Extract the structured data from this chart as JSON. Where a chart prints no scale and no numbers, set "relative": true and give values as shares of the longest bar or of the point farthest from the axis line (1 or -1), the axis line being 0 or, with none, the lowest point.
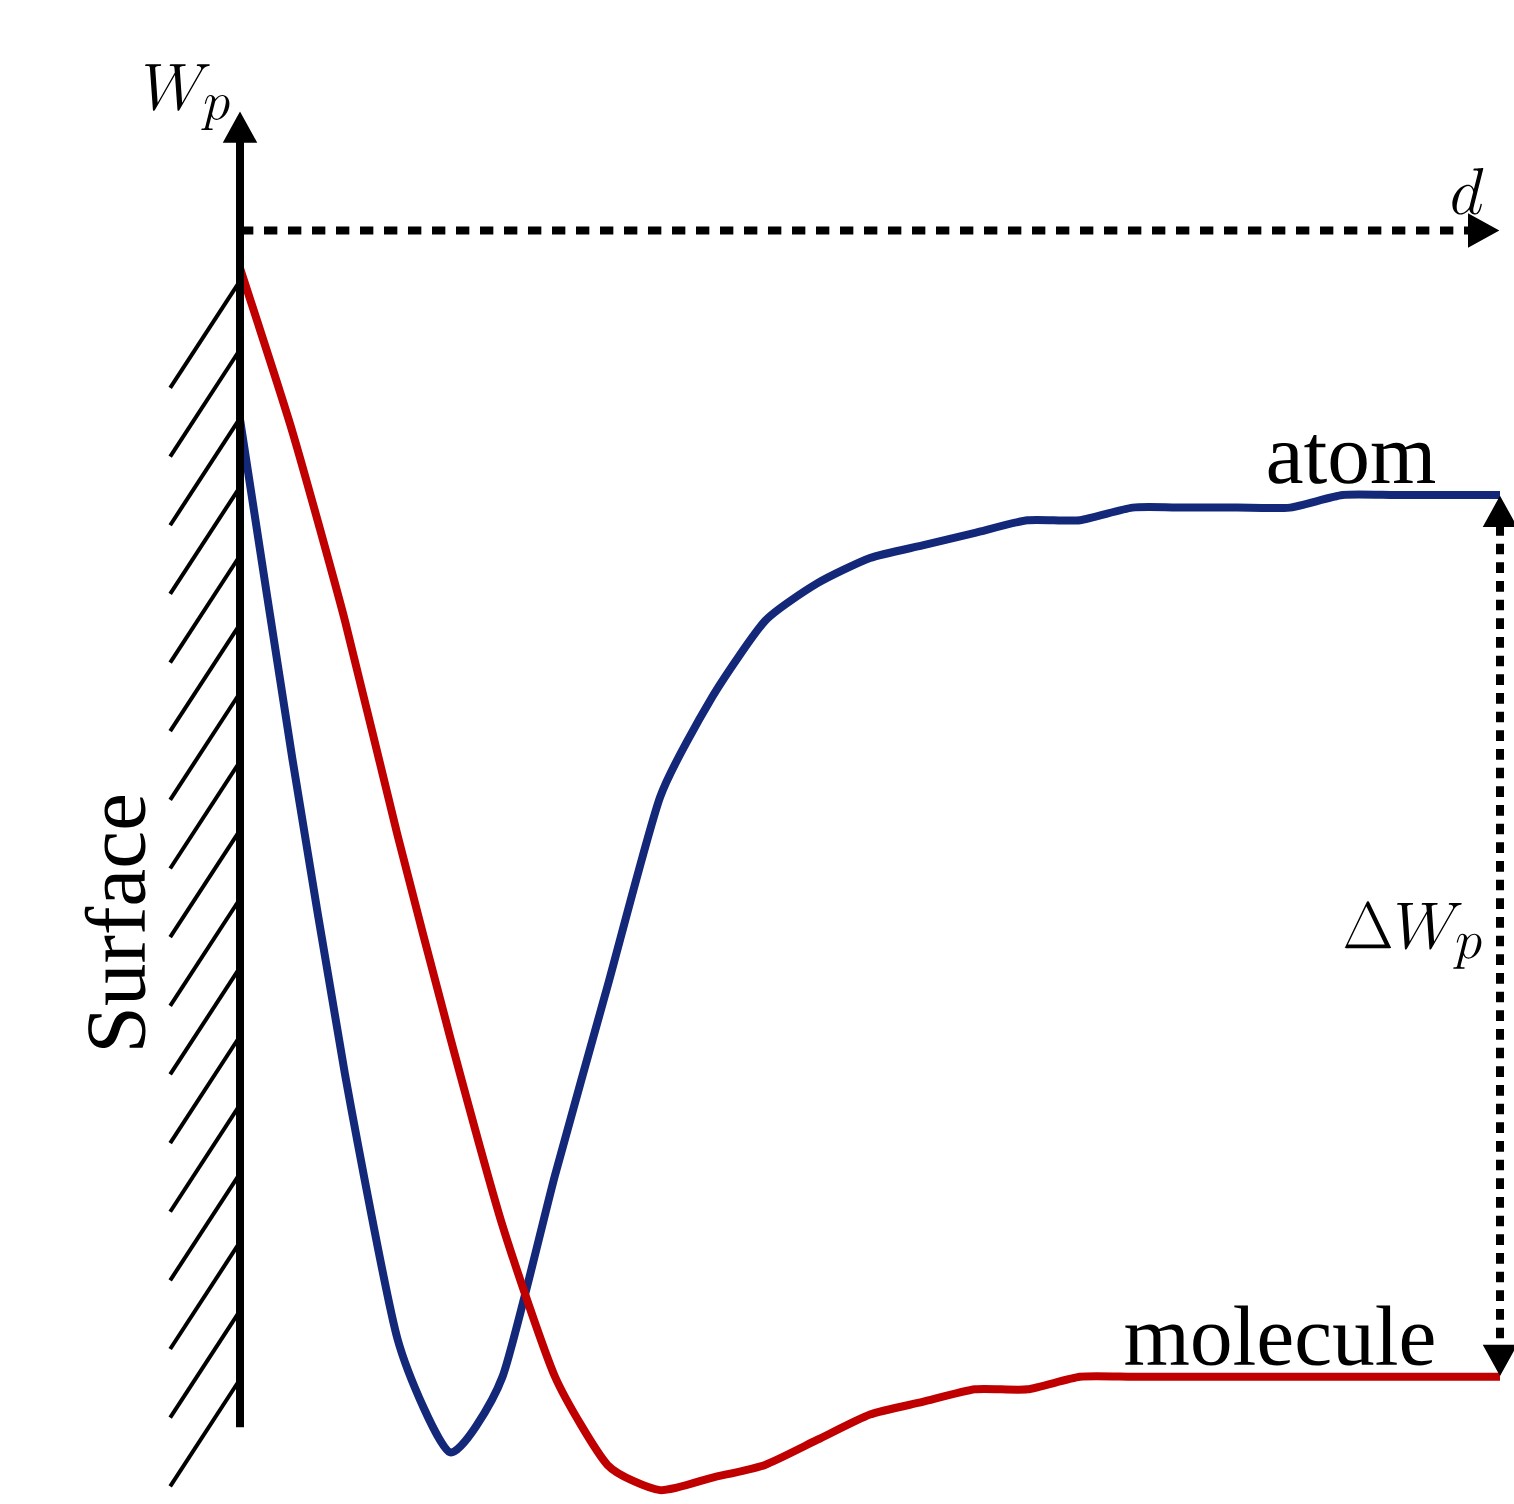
{
  "chart_data": {
    "type": "line",
    "relative": true,
    "xlabel": "d",
    "ylabel": "W_p",
    "annotations": [
      "Surface",
      "\\Delta W_p"
    ],
    "line_style": "solid",
    "categories": [
      null,
      null,
      null,
      null,
      null,
      null,
      null,
      null,
      null,
      null,
      null,
      null,
      null,
      null,
      null,
      null,
      null,
      null,
      null,
      null,
      null,
      null,
      null,
      null,
      null
    ],
    "series": [
      {
        "name": "atom",
        "color": "#14287a",
        "values": [
          -0.15,
          -0.42,
          -0.67,
          -0.88,
          -0.97,
          -0.91,
          -0.75,
          -0.6,
          -0.45,
          -0.37,
          -0.31,
          -0.28,
          -0.26,
          -0.25,
          -0.24,
          -0.23,
          -0.23,
          -0.22,
          -0.22,
          -0.22,
          -0.22,
          -0.21,
          -0.21,
          -0.21,
          -0.21
        ]
      },
      {
        "name": "molecule",
        "color": "#c00000",
        "values": [
          -0.03,
          -0.16,
          -0.31,
          -0.48,
          -0.64,
          -0.79,
          -0.91,
          -0.98,
          -1,
          -0.99,
          -0.98,
          -0.96,
          -0.94,
          -0.93,
          -0.92,
          -0.92,
          -0.91,
          -0.91,
          -0.91,
          -0.91,
          -0.91,
          -0.91,
          -0.91,
          -0.91,
          -0.91
        ]
      }
    ]
  }
}
